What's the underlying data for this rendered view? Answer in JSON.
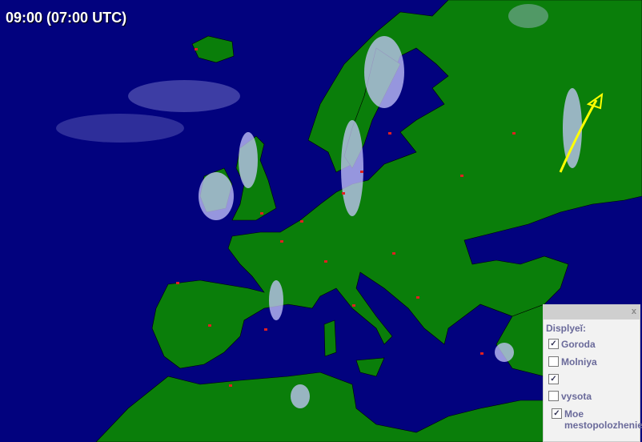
{
  "time_label": "09:00 (07:00 UTC)",
  "colors": {
    "sea": "#02027e",
    "land": "#0a7e0a",
    "clouds": "#c8c8ff",
    "cities": "#e02020",
    "arrow": "#ffff00"
  },
  "panel": {
    "close_label": "x",
    "header": "Displyeĭ:",
    "options": [
      {
        "label": "Goroda",
        "checked": true
      },
      {
        "label": "Molniya",
        "checked": false
      },
      {
        "label": "",
        "checked": true
      },
      {
        "label": "vysota",
        "checked": false
      },
      {
        "label": "Moe mestopolozhenie",
        "checked": true
      }
    ]
  }
}
